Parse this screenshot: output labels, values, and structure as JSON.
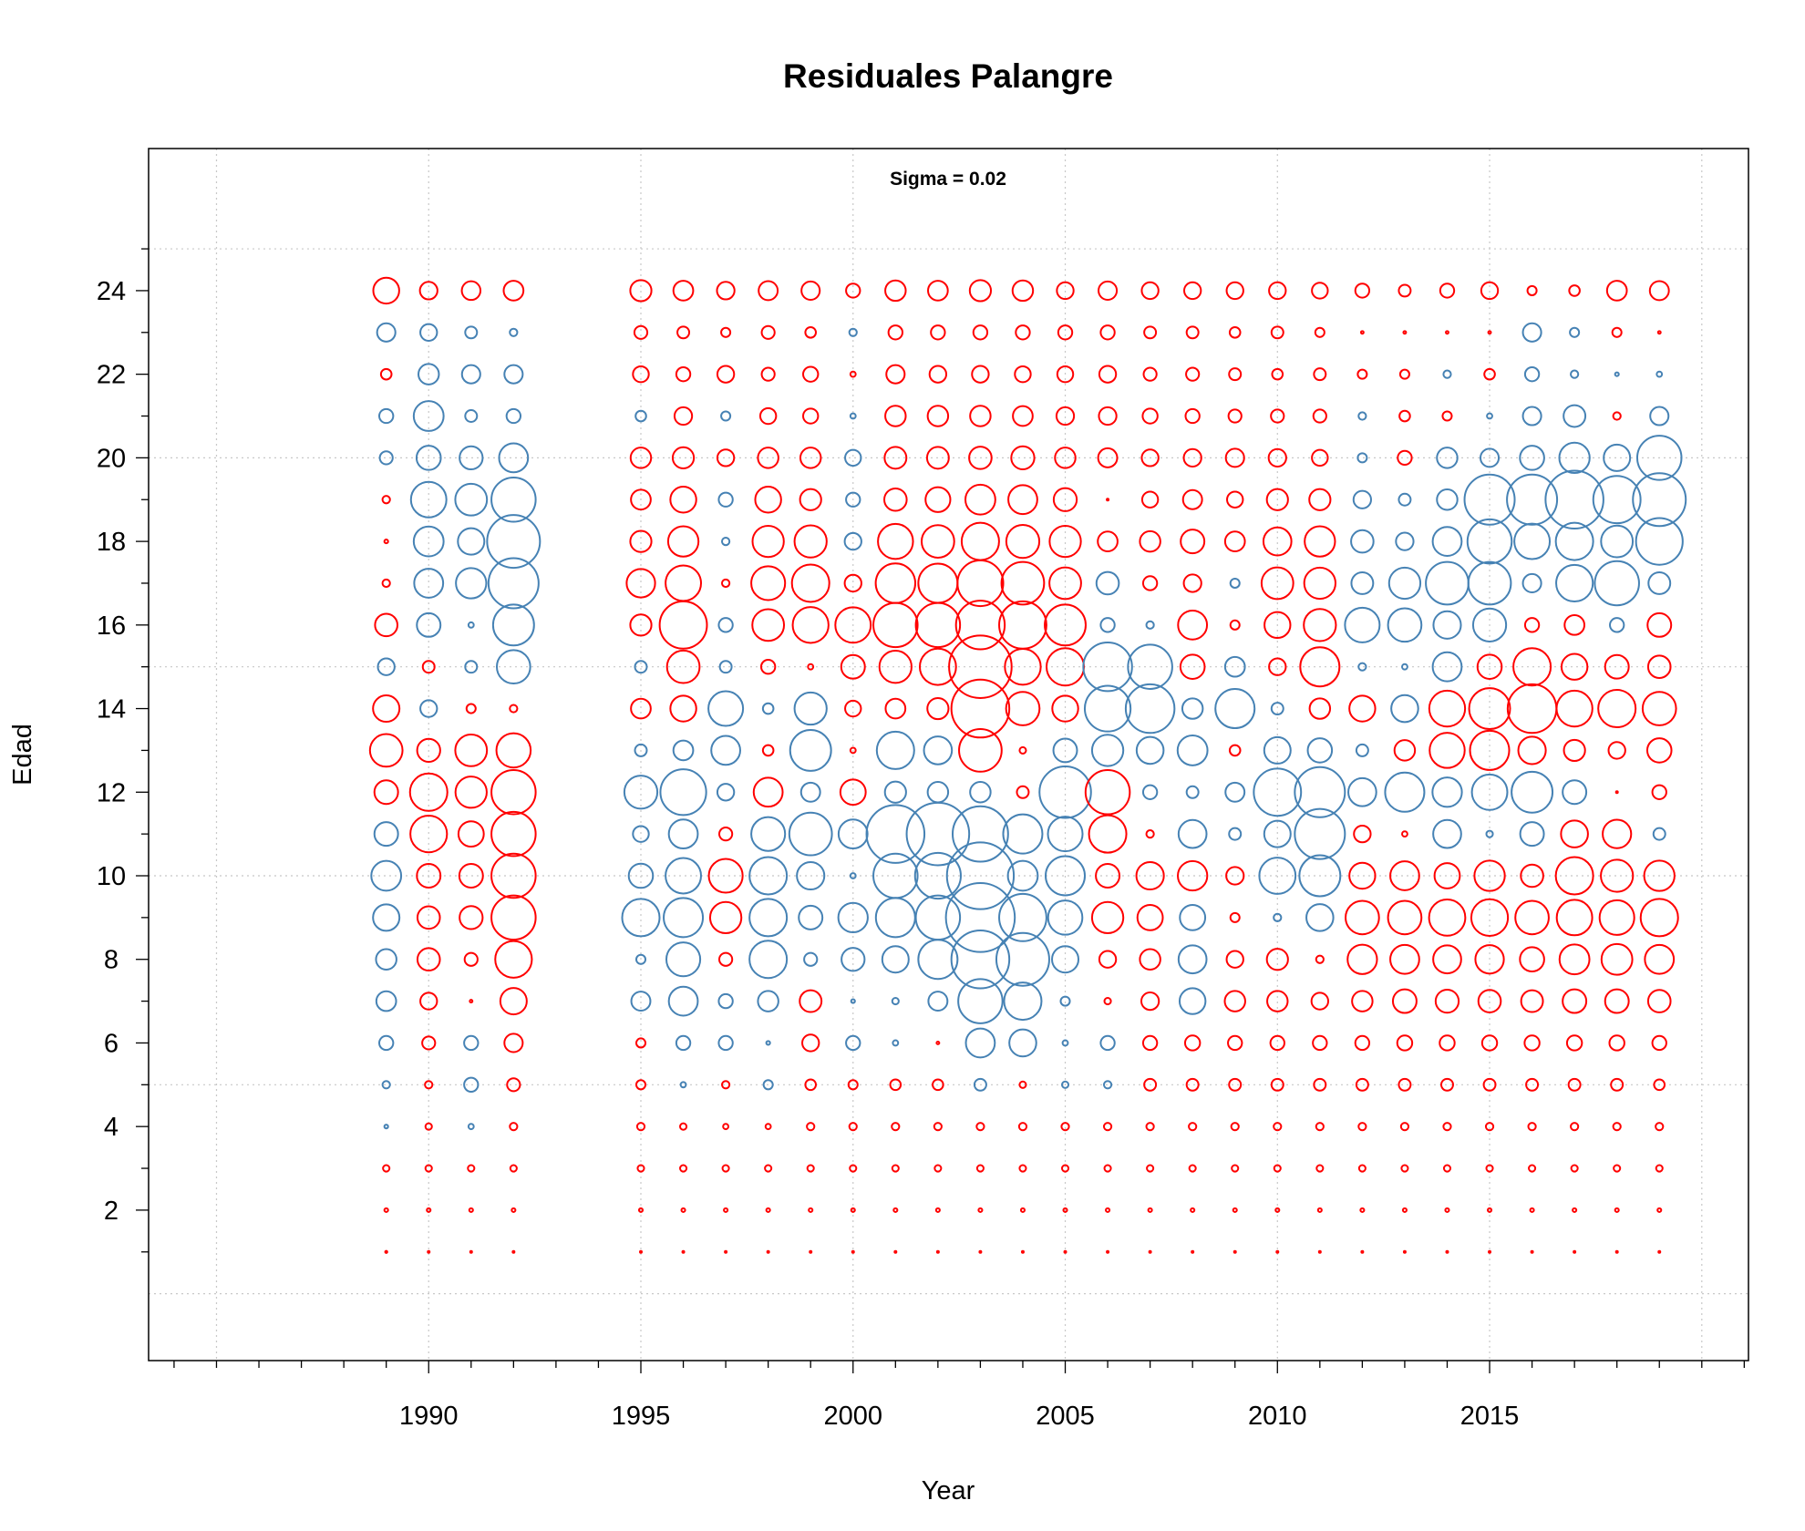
{
  "chart_data": {
    "type": "scatter",
    "subtype": "bubble",
    "title": "Residuales Palangre",
    "annotation": "Sigma =  0.02",
    "xlabel": "Year",
    "ylabel": "Edad",
    "xlim": [
      1983.4,
      2021.1
    ],
    "ylim": [
      -1.6,
      27.4
    ],
    "x_ticks": [
      1990,
      1995,
      2000,
      2005,
      2010,
      2015
    ],
    "y_ticks": [
      2,
      4,
      6,
      8,
      10,
      12,
      14,
      16,
      18,
      20,
      22,
      24
    ],
    "grid": true,
    "colors": {
      "positive": "#ff0000",
      "negative": "#4682b4"
    },
    "years": [
      1989,
      1990,
      1991,
      1992,
      1995,
      1996,
      1997,
      1998,
      1999,
      2000,
      2001,
      2002,
      2003,
      2004,
      2005,
      2006,
      2007,
      2008,
      2009,
      2010,
      2011,
      2012,
      2013,
      2014,
      2015,
      2016,
      2017,
      2018,
      2019
    ],
    "ages": [
      24,
      23,
      22,
      21,
      20,
      19,
      18,
      17,
      16,
      15,
      14,
      13,
      12,
      11,
      10,
      9,
      8,
      7,
      6,
      5,
      4,
      3,
      2,
      1
    ],
    "note": "residuals[row][col]; row = age (same order as ages), col = year (same order as years); positive = red, negative = blue; bubble area proportional to |residual|",
    "residuals": [
      [
        0.48,
        0.22,
        0.25,
        0.28,
        0.32,
        0.28,
        0.22,
        0.26,
        0.24,
        0.14,
        0.3,
        0.28,
        0.32,
        0.3,
        0.2,
        0.24,
        0.2,
        0.2,
        0.2,
        0.2,
        0.18,
        0.14,
        0.1,
        0.14,
        0.2,
        0.06,
        0.08,
        0.28,
        0.26
      ],
      [
        -0.24,
        -0.2,
        -0.1,
        -0.04,
        0.12,
        0.1,
        0.06,
        0.12,
        0.08,
        -0.04,
        0.14,
        0.14,
        0.14,
        0.14,
        0.14,
        0.14,
        0.1,
        0.1,
        0.08,
        0.1,
        0.06,
        0.005,
        0.005,
        0.005,
        0.005,
        -0.24,
        -0.06,
        0.06,
        0.005
      ],
      [
        0.08,
        -0.3,
        -0.24,
        -0.24,
        0.18,
        0.14,
        0.2,
        0.12,
        0.16,
        0.02,
        0.24,
        0.2,
        0.2,
        0.18,
        0.18,
        0.2,
        0.12,
        0.12,
        0.1,
        0.08,
        0.1,
        0.06,
        0.06,
        -0.04,
        0.08,
        -0.14,
        -0.04,
        -0.01,
        -0.02
      ],
      [
        -0.14,
        -0.64,
        -0.1,
        -0.14,
        -0.08,
        0.22,
        -0.06,
        0.18,
        0.16,
        -0.02,
        0.3,
        0.3,
        0.3,
        0.28,
        0.22,
        0.22,
        0.16,
        0.14,
        0.12,
        0.12,
        0.12,
        -0.04,
        0.08,
        0.06,
        -0.02,
        -0.24,
        -0.34,
        0.04,
        -0.24
      ],
      [
        -0.12,
        -0.42,
        -0.38,
        -0.6,
        0.3,
        0.32,
        0.2,
        0.3,
        0.3,
        -0.18,
        0.34,
        0.34,
        0.36,
        0.38,
        0.3,
        0.26,
        0.2,
        0.22,
        0.24,
        0.22,
        0.18,
        -0.06,
        0.14,
        -0.3,
        -0.24,
        -0.42,
        -0.66,
        -0.5,
        -1.4
      ],
      [
        0.04,
        -0.9,
        -0.72,
        -1.4,
        0.28,
        0.48,
        -0.14,
        0.48,
        0.32,
        -0.14,
        0.36,
        0.44,
        0.64,
        0.6,
        0.38,
        0.002,
        0.18,
        0.26,
        0.18,
        0.32,
        0.32,
        -0.22,
        -0.1,
        -0.3,
        -1.8,
        -1.8,
        -2.4,
        -1.6,
        -2.0
      ],
      [
        0.01,
        -0.64,
        -0.5,
        -2.0,
        0.32,
        0.66,
        -0.04,
        0.7,
        0.74,
        -0.2,
        0.88,
        0.76,
        1.0,
        0.78,
        0.7,
        0.28,
        0.3,
        0.4,
        0.28,
        0.56,
        0.66,
        -0.36,
        -0.22,
        -0.6,
        -1.4,
        -0.9,
        -1.0,
        -0.72,
        -1.56
      ],
      [
        0.04,
        -0.6,
        -0.66,
        -1.8,
        0.58,
        0.9,
        0.04,
        0.82,
        1.0,
        0.2,
        1.12,
        1.1,
        1.5,
        1.3,
        0.72,
        -0.36,
        0.14,
        0.22,
        -0.06,
        0.72,
        0.7,
        -0.34,
        -0.7,
        -1.3,
        -1.3,
        -0.24,
        -0.96,
        -1.4,
        -0.34
      ],
      [
        0.36,
        -0.4,
        -0.02,
        -1.2,
        0.32,
        1.6,
        -0.14,
        0.72,
        0.92,
        0.9,
        1.4,
        1.4,
        1.7,
        1.6,
        1.2,
        -0.14,
        -0.04,
        0.6,
        0.06,
        0.48,
        0.74,
        -0.86,
        -0.8,
        -0.54,
        -0.78,
        0.14,
        0.28,
        -0.14,
        0.4
      ],
      [
        -0.2,
        0.1,
        -0.1,
        -0.8,
        -0.1,
        0.76,
        -0.1,
        0.14,
        0.02,
        0.4,
        0.74,
        0.94,
        2.8,
        0.92,
        1.0,
        -1.7,
        -1.4,
        0.42,
        -0.28,
        0.2,
        1.1,
        -0.04,
        -0.02,
        -0.6,
        0.42,
        1.0,
        0.48,
        0.4,
        0.36
      ],
      [
        0.5,
        -0.2,
        0.06,
        0.04,
        0.28,
        0.48,
        -0.86,
        -0.08,
        -0.74,
        0.18,
        0.28,
        0.32,
        2.4,
        0.8,
        0.48,
        -1.5,
        -1.7,
        -0.3,
        -1.1,
        -0.1,
        0.3,
        0.48,
        -0.52,
        0.92,
        1.2,
        1.7,
        0.92,
        1.0,
        0.8
      ],
      [
        0.76,
        0.38,
        0.72,
        0.84,
        -0.1,
        -0.28,
        -0.6,
        0.08,
        -1.2,
        0.02,
        -1.0,
        -0.56,
        1.3,
        0.03,
        -0.4,
        -0.7,
        -0.52,
        -0.64,
        0.08,
        -0.5,
        -0.42,
        -0.1,
        0.3,
        0.88,
        1.1,
        0.54,
        0.32,
        0.2,
        0.42
      ],
      [
        0.4,
        1.0,
        0.7,
        1.4,
        -0.78,
        -1.5,
        -0.2,
        0.6,
        -0.26,
        0.46,
        -0.32,
        -0.3,
        -0.3,
        0.1,
        -1.9,
        1.4,
        -0.14,
        -0.1,
        -0.26,
        -1.6,
        -1.8,
        -0.56,
        -1.1,
        -0.62,
        -0.9,
        -1.2,
        -0.4,
        0.002,
        0.14
      ],
      [
        -0.4,
        0.96,
        0.46,
        1.4,
        -0.18,
        -0.6,
        0.12,
        -0.82,
        -1.3,
        -0.6,
        -2.4,
        -2.8,
        -2.2,
        -1.1,
        -0.86,
        1.0,
        0.04,
        -0.56,
        -0.1,
        -0.5,
        -1.8,
        0.2,
        0.02,
        -0.56,
        -0.03,
        -0.4,
        0.52,
        0.58,
        -0.1
      ],
      [
        -0.64,
        0.4,
        0.4,
        1.4,
        -0.42,
        -0.9,
        0.82,
        -1.0,
        -0.54,
        -0.02,
        -1.4,
        -1.5,
        -3.2,
        -0.64,
        -1.1,
        0.4,
        0.54,
        0.62,
        0.22,
        -0.94,
        -1.2,
        0.48,
        0.6,
        0.46,
        0.66,
        0.36,
        1.0,
        0.74,
        0.66
      ],
      [
        -0.5,
        0.36,
        0.38,
        1.4,
        -1.0,
        -1.1,
        0.7,
        -1.0,
        -0.4,
        -0.62,
        -1.1,
        -1.4,
        -3.4,
        -1.6,
        -0.84,
        0.7,
        0.46,
        -0.46,
        0.06,
        -0.04,
        -0.52,
        0.8,
        0.8,
        0.94,
        0.96,
        0.8,
        0.9,
        0.86,
        1.0
      ],
      [
        -0.3,
        0.36,
        0.12,
        0.96,
        -0.06,
        -0.82,
        0.12,
        -1.0,
        -0.12,
        -0.38,
        -0.5,
        -1.1,
        -2.4,
        -2.0,
        -0.5,
        0.2,
        0.3,
        -0.56,
        0.2,
        0.32,
        0.04,
        0.62,
        0.6,
        0.56,
        0.58,
        0.42,
        0.64,
        0.68,
        0.6
      ],
      [
        -0.28,
        0.2,
        0.005,
        0.5,
        -0.26,
        -0.6,
        -0.14,
        -0.3,
        0.34,
        -0.01,
        -0.03,
        -0.26,
        -1.4,
        -1.0,
        -0.06,
        0.03,
        0.22,
        -0.48,
        0.3,
        0.3,
        0.2,
        0.3,
        0.4,
        0.38,
        0.36,
        0.34,
        0.4,
        0.4,
        0.36
      ],
      [
        -0.14,
        0.12,
        -0.14,
        0.24,
        0.06,
        -0.14,
        -0.14,
        -0.01,
        0.2,
        -0.14,
        -0.02,
        0.005,
        -0.6,
        -0.52,
        -0.02,
        -0.14,
        0.14,
        0.16,
        0.14,
        0.14,
        0.14,
        0.14,
        0.16,
        0.16,
        0.16,
        0.16,
        0.16,
        0.16,
        0.14
      ],
      [
        -0.04,
        0.04,
        -0.14,
        0.12,
        0.06,
        -0.02,
        0.04,
        -0.06,
        0.08,
        0.06,
        0.08,
        0.08,
        -0.1,
        0.03,
        -0.03,
        -0.04,
        0.1,
        0.1,
        0.1,
        0.1,
        0.1,
        0.1,
        0.1,
        0.1,
        0.1,
        0.1,
        0.1,
        0.1,
        0.08
      ],
      [
        -0.01,
        0.03,
        -0.02,
        0.04,
        0.04,
        0.03,
        0.02,
        0.02,
        0.04,
        0.04,
        0.04,
        0.04,
        0.04,
        0.04,
        0.04,
        0.04,
        0.04,
        0.04,
        0.04,
        0.04,
        0.04,
        0.04,
        0.04,
        0.04,
        0.04,
        0.04,
        0.04,
        0.04,
        0.04
      ],
      [
        0.03,
        0.03,
        0.03,
        0.03,
        0.03,
        0.03,
        0.03,
        0.03,
        0.03,
        0.03,
        0.03,
        0.03,
        0.03,
        0.03,
        0.03,
        0.03,
        0.03,
        0.03,
        0.03,
        0.03,
        0.03,
        0.03,
        0.03,
        0.03,
        0.03,
        0.03,
        0.03,
        0.03,
        0.03
      ],
      [
        0.01,
        0.01,
        0.01,
        0.01,
        0.01,
        0.01,
        0.01,
        0.01,
        0.01,
        0.01,
        0.01,
        0.01,
        0.01,
        0.01,
        0.01,
        0.01,
        0.01,
        0.01,
        0.01,
        0.01,
        0.01,
        0.01,
        0.01,
        0.01,
        0.01,
        0.01,
        0.01,
        0.01,
        0.01
      ],
      [
        0.003,
        0.002,
        0.002,
        0.002,
        0.002,
        0.002,
        0.002,
        0.002,
        0.002,
        0.002,
        0.002,
        0.002,
        0.002,
        0.002,
        0.002,
        0.002,
        0.002,
        0.002,
        0.002,
        0.002,
        0.002,
        0.002,
        0.002,
        0.002,
        0.002,
        0.002,
        0.002,
        0.002,
        0.002
      ]
    ]
  }
}
